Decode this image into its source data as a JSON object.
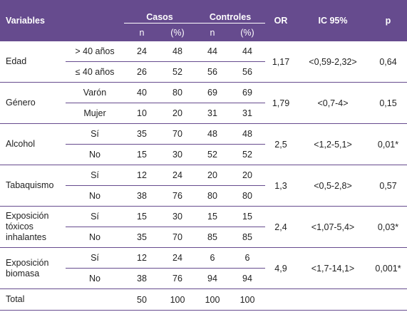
{
  "header": {
    "variables": "Variables",
    "casos": "Casos",
    "controles": "Controles",
    "or": "OR",
    "ic": "IC 95%",
    "p": "p",
    "n1": "n",
    "pct1": "(%)",
    "n2": "n",
    "pct2": "(%)"
  },
  "rows": {
    "edad": {
      "label": "Edad",
      "or": "1,17",
      "ic": "<0,59-2,32>",
      "p": "0,64",
      "r1": {
        "sub": "> 40 años",
        "casos_n": "24",
        "casos_pct": "48",
        "ctrl_n": "44",
        "ctrl_pct": "44"
      },
      "r2": {
        "sub": "≤ 40 años",
        "casos_n": "26",
        "casos_pct": "52",
        "ctrl_n": "56",
        "ctrl_pct": "56"
      }
    },
    "genero": {
      "label": "Género",
      "or": "1,79",
      "ic": "<0,7-4>",
      "p": "0,15",
      "r1": {
        "sub": "Varón",
        "casos_n": "40",
        "casos_pct": "80",
        "ctrl_n": "69",
        "ctrl_pct": "69"
      },
      "r2": {
        "sub": "Mujer",
        "casos_n": "10",
        "casos_pct": "20",
        "ctrl_n": "31",
        "ctrl_pct": "31"
      }
    },
    "alcohol": {
      "label": "Alcohol",
      "or": "2,5",
      "ic": "<1,2-5,1>",
      "p": "0,01*",
      "r1": {
        "sub": "Sí",
        "casos_n": "35",
        "casos_pct": "70",
        "ctrl_n": "48",
        "ctrl_pct": "48"
      },
      "r2": {
        "sub": "No",
        "casos_n": "15",
        "casos_pct": "30",
        "ctrl_n": "52",
        "ctrl_pct": "52"
      }
    },
    "tabaquismo": {
      "label": "Tabaquismo",
      "or": "1,3",
      "ic": "<0,5-2,8>",
      "p": "0,57",
      "r1": {
        "sub": "Sí",
        "casos_n": "12",
        "casos_pct": "24",
        "ctrl_n": "20",
        "ctrl_pct": "20"
      },
      "r2": {
        "sub": "No",
        "casos_n": "38",
        "casos_pct": "76",
        "ctrl_n": "80",
        "ctrl_pct": "80"
      }
    },
    "toxicos": {
      "label_line1": "Exposición",
      "label_line2": "tóxicos",
      "label_line3": "inhalantes",
      "or": "2,4",
      "ic": "<1,07-5,4>",
      "p": "0,03*",
      "r1": {
        "sub": "Sí",
        "casos_n": "15",
        "casos_pct": "30",
        "ctrl_n": "15",
        "ctrl_pct": "15"
      },
      "r2": {
        "sub": "No",
        "casos_n": "35",
        "casos_pct": "70",
        "ctrl_n": "85",
        "ctrl_pct": "85"
      }
    },
    "biomasa": {
      "label_line1": "Exposición",
      "label_line2": "biomasa",
      "or": "4,9",
      "ic": "<1,7-14,1>",
      "p": "0,001*",
      "r1": {
        "sub": "Sí",
        "casos_n": "12",
        "casos_pct": "24",
        "ctrl_n": "6",
        "ctrl_pct": "6"
      },
      "r2": {
        "sub": "No",
        "casos_n": "38",
        "casos_pct": "76",
        "ctrl_n": "94",
        "ctrl_pct": "94"
      }
    },
    "total": {
      "label": "Total",
      "casos_n": "50",
      "casos_pct": "100",
      "ctrl_n": "100",
      "ctrl_pct": "100"
    }
  }
}
